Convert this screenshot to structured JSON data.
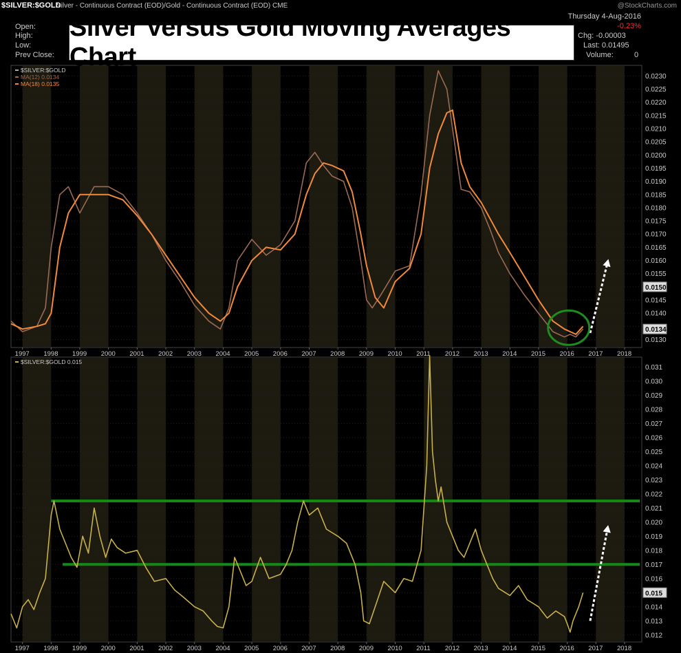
{
  "header": {
    "symbol": "$SILVER:$GOLD",
    "description": "Silver - Continuous Contract (EOD)/Gold - Continuous Contract (EOD)",
    "exchange": "CME",
    "brand": "@StockCharts.com",
    "date": "Thursday  4-Aug-2016",
    "change_pct": "-0.23%",
    "labels": {
      "open": "Open:",
      "high": "High:",
      "low": "Low:",
      "prev_close": "Prev Close:"
    },
    "chg_label": "Chg: -0.00003",
    "last_label": "Last: 0.01495",
    "volume_label": "Volume:",
    "volume_value": "0"
  },
  "overlay_title": "Silver Versus Gold Moving Averages Chart",
  "colors": {
    "ma12": "#9b6a55",
    "ma18": "#f28a3a",
    "price": "#c8b04a",
    "band": "#1d1a10",
    "support": "#138a13",
    "circle": "#1e8c1e",
    "arrow": "#ffffff",
    "grid": "#333333"
  },
  "x_labels": [
    "1997",
    "1998",
    "1999",
    "2000",
    "2001",
    "2002",
    "2003",
    "2004",
    "2005",
    "2006",
    "2007",
    "2008",
    "2009",
    "2010",
    "2011",
    "2012",
    "2013",
    "2014",
    "2015",
    "2016",
    "2017",
    "2018"
  ],
  "chart_data": [
    {
      "type": "line",
      "legend": [
        "$SILVER:$GOLD",
        "MA(12) 0.0134",
        "MA(18) 0.0135"
      ],
      "x_range": [
        1996.6,
        2018.6
      ],
      "ylim": [
        0.0127,
        0.0234
      ],
      "y_ticks": [
        "0.0130",
        "0.0135",
        "0.0140",
        "0.0145",
        "0.0150",
        "0.0155",
        "0.0160",
        "0.0165",
        "0.0170",
        "0.0175",
        "0.0180",
        "0.0185",
        "0.0190",
        "0.0195",
        "0.0200",
        "0.0205",
        "0.0210",
        "0.0215",
        "0.0220",
        "0.0225",
        "0.0230"
      ],
      "value_tags": [
        {
          "label": "0.0150",
          "value": 0.015
        },
        {
          "label": "0.0134",
          "value": 0.0134
        }
      ],
      "series": [
        {
          "name": "MA(12) 0.0134",
          "x": [
            1996.6,
            1997.0,
            1997.5,
            1997.8,
            1998.0,
            1998.3,
            1998.6,
            1999.0,
            1999.5,
            2000.0,
            2000.5,
            2001.0,
            2001.5,
            2002.0,
            2002.5,
            2003.0,
            2003.5,
            2003.9,
            2004.2,
            2004.5,
            2005.0,
            2005.5,
            2006.0,
            2006.5,
            2006.9,
            2007.2,
            2007.5,
            2007.8,
            2008.2,
            2008.5,
            2008.8,
            2009.0,
            2009.2,
            2009.5,
            2010.0,
            2010.5,
            2010.9,
            2011.2,
            2011.5,
            2011.8,
            2012.0,
            2012.3,
            2012.6,
            2013.0,
            2013.3,
            2013.6,
            2014.0,
            2014.5,
            2015.0,
            2015.5,
            2015.9,
            2016.1,
            2016.3,
            2016.55
          ],
          "y": [
            0.0137,
            0.0133,
            0.0135,
            0.0142,
            0.0165,
            0.0185,
            0.0188,
            0.0178,
            0.0188,
            0.0188,
            0.0185,
            0.0178,
            0.017,
            0.016,
            0.0152,
            0.0143,
            0.0137,
            0.0134,
            0.0142,
            0.016,
            0.0168,
            0.0162,
            0.0166,
            0.0175,
            0.0197,
            0.0201,
            0.0196,
            0.0192,
            0.019,
            0.018,
            0.016,
            0.0145,
            0.0142,
            0.0147,
            0.0156,
            0.0158,
            0.0185,
            0.0215,
            0.0232,
            0.0225,
            0.021,
            0.0187,
            0.0186,
            0.018,
            0.0172,
            0.0163,
            0.0155,
            0.0147,
            0.014,
            0.0133,
            0.0131,
            0.0132,
            0.0131,
            0.0134
          ]
        },
        {
          "name": "MA(18) 0.0135",
          "x": [
            1996.6,
            1997.0,
            1997.5,
            1997.8,
            1998.0,
            1998.3,
            1998.6,
            1999.0,
            1999.5,
            2000.0,
            2000.5,
            2001.0,
            2001.5,
            2002.0,
            2002.5,
            2003.0,
            2003.5,
            2003.9,
            2004.2,
            2004.5,
            2005.0,
            2005.5,
            2006.0,
            2006.5,
            2006.9,
            2007.2,
            2007.5,
            2007.8,
            2008.2,
            2008.5,
            2008.8,
            2009.0,
            2009.3,
            2009.6,
            2010.0,
            2010.5,
            2010.9,
            2011.2,
            2011.5,
            2011.8,
            2012.0,
            2012.3,
            2012.6,
            2013.0,
            2013.3,
            2013.6,
            2014.0,
            2014.5,
            2015.0,
            2015.5,
            2015.9,
            2016.1,
            2016.3,
            2016.55
          ],
          "y": [
            0.0136,
            0.0134,
            0.0135,
            0.0136,
            0.014,
            0.0165,
            0.0178,
            0.0185,
            0.0185,
            0.0185,
            0.0183,
            0.0177,
            0.017,
            0.0162,
            0.0154,
            0.0146,
            0.014,
            0.0137,
            0.014,
            0.015,
            0.016,
            0.0165,
            0.0164,
            0.017,
            0.0185,
            0.0193,
            0.0197,
            0.0196,
            0.0194,
            0.0186,
            0.017,
            0.0158,
            0.0146,
            0.0142,
            0.0152,
            0.0157,
            0.017,
            0.0195,
            0.0208,
            0.0216,
            0.0217,
            0.0197,
            0.0188,
            0.0182,
            0.0176,
            0.017,
            0.0163,
            0.0154,
            0.0145,
            0.0137,
            0.0134,
            0.0133,
            0.0132,
            0.0135
          ]
        }
      ]
    },
    {
      "type": "line",
      "legend": [
        "$SILVER:$GOLD 0.015"
      ],
      "x_range": [
        1996.6,
        2018.6
      ],
      "ylim": [
        0.0115,
        0.0317
      ],
      "y_ticks": [
        "0.012",
        "0.013",
        "0.014",
        "0.015",
        "0.016",
        "0.017",
        "0.018",
        "0.019",
        "0.020",
        "0.021",
        "0.022",
        "0.023",
        "0.024",
        "0.025",
        "0.026",
        "0.027",
        "0.028",
        "0.029",
        "0.030",
        "0.031"
      ],
      "value_tags": [
        {
          "label": "0.015",
          "value": 0.015
        }
      ],
      "support_levels": [
        0.0215,
        0.017
      ],
      "series": [
        {
          "name": "$SILVER:$GOLD 0.015",
          "x": [
            1996.6,
            1996.8,
            1997.0,
            1997.2,
            1997.4,
            1997.6,
            1997.8,
            1998.0,
            1998.1,
            1998.3,
            1998.5,
            1998.7,
            1998.9,
            1999.1,
            1999.3,
            1999.5,
            1999.7,
            1999.9,
            2000.1,
            2000.3,
            2000.6,
            2001.0,
            2001.3,
            2001.6,
            2002.0,
            2002.3,
            2002.6,
            2003.0,
            2003.3,
            2003.6,
            2003.8,
            2004.0,
            2004.2,
            2004.4,
            2004.6,
            2004.8,
            2005.0,
            2005.3,
            2005.6,
            2006.0,
            2006.2,
            2006.4,
            2006.6,
            2006.8,
            2007.0,
            2007.3,
            2007.6,
            2008.0,
            2008.3,
            2008.6,
            2008.8,
            2008.9,
            2009.1,
            2009.3,
            2009.6,
            2010.0,
            2010.3,
            2010.6,
            2010.9,
            2011.1,
            2011.2,
            2011.3,
            2011.4,
            2011.5,
            2011.6,
            2011.8,
            2012.0,
            2012.2,
            2012.4,
            2012.6,
            2012.8,
            2013.0,
            2013.2,
            2013.4,
            2013.6,
            2014.0,
            2014.3,
            2014.6,
            2015.0,
            2015.3,
            2015.6,
            2015.9,
            2016.0,
            2016.1,
            2016.2,
            2016.4,
            2016.55
          ],
          "y": [
            0.0135,
            0.0125,
            0.014,
            0.0145,
            0.0138,
            0.015,
            0.016,
            0.0205,
            0.0215,
            0.0195,
            0.0185,
            0.0175,
            0.0168,
            0.019,
            0.0178,
            0.021,
            0.019,
            0.0175,
            0.0188,
            0.0182,
            0.0178,
            0.018,
            0.0168,
            0.0158,
            0.016,
            0.0152,
            0.0147,
            0.014,
            0.0137,
            0.013,
            0.0126,
            0.0125,
            0.014,
            0.0175,
            0.0165,
            0.0155,
            0.0158,
            0.0175,
            0.016,
            0.0163,
            0.017,
            0.018,
            0.02,
            0.0215,
            0.0205,
            0.021,
            0.0195,
            0.019,
            0.0185,
            0.017,
            0.015,
            0.013,
            0.0128,
            0.014,
            0.0158,
            0.015,
            0.016,
            0.0158,
            0.018,
            0.024,
            0.0318,
            0.025,
            0.023,
            0.0215,
            0.0225,
            0.02,
            0.019,
            0.018,
            0.0175,
            0.0185,
            0.0195,
            0.018,
            0.017,
            0.016,
            0.0153,
            0.0148,
            0.0155,
            0.0145,
            0.014,
            0.0132,
            0.0137,
            0.0133,
            0.0128,
            0.0122,
            0.013,
            0.014,
            0.015
          ]
        }
      ]
    }
  ]
}
